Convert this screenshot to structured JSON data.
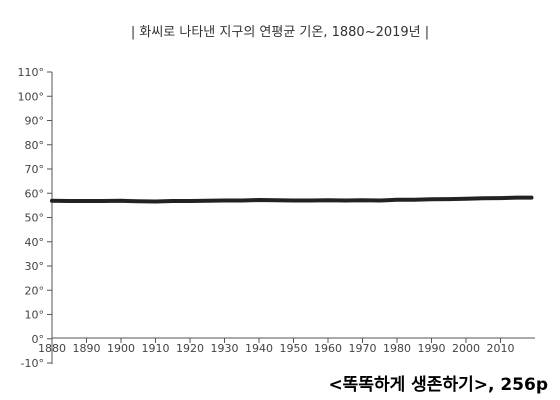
{
  "chart_data": {
    "type": "line",
    "title": "| 화씨로 나타낸 지구의 연평균 기온, 1880~2019년 |",
    "xlabel": "",
    "ylabel": "",
    "xlim": [
      1880,
      2020
    ],
    "ylim": [
      -10,
      110
    ],
    "x_ticks": [
      "1880",
      "1890",
      "1900",
      "1910",
      "1920",
      "1930",
      "1940",
      "1950",
      "1960",
      "1970",
      "1980",
      "1990",
      "2000",
      "2010"
    ],
    "y_ticks": [
      "110°",
      "100°",
      "90°",
      "80°",
      "70°",
      "60°",
      "50°",
      "40°",
      "30°",
      "20°",
      "10°",
      "0°",
      "-10°"
    ],
    "grid": false,
    "series": [
      {
        "x": [
          1880,
          1885,
          1890,
          1895,
          1900,
          1905,
          1910,
          1915,
          1920,
          1925,
          1930,
          1935,
          1940,
          1945,
          1950,
          1955,
          1960,
          1965,
          1970,
          1975,
          1980,
          1985,
          1990,
          1995,
          2000,
          2005,
          2010,
          2015,
          2019
        ],
        "values": [
          56.9,
          56.8,
          56.8,
          56.8,
          56.9,
          56.7,
          56.6,
          56.8,
          56.8,
          56.9,
          57.0,
          57.0,
          57.2,
          57.1,
          57.0,
          57.0,
          57.1,
          57.0,
          57.1,
          57.0,
          57.3,
          57.3,
          57.5,
          57.6,
          57.7,
          57.9,
          58.0,
          58.2,
          58.2
        ]
      }
    ]
  },
  "source_caption": "<똑똑하게 생존하기>, 256p",
  "colors": {
    "line": "#222222",
    "axis": "#555555",
    "text": "#444444",
    "background": "#ffffff"
  }
}
